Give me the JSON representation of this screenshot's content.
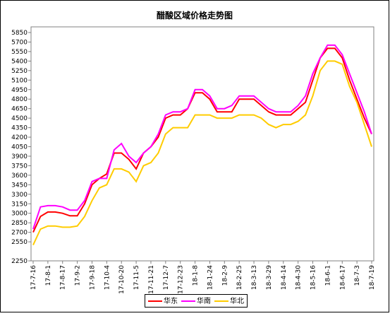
{
  "chart_data": {
    "type": "line",
    "title": "醋酸区域价格走势图",
    "categories": [
      "17-7-16",
      null,
      "17-8-1",
      null,
      "17-8-17",
      null,
      "17-9-2",
      null,
      "17-9-18",
      null,
      "17-10-4",
      null,
      "17-10-20",
      null,
      "17-11-5",
      null,
      "17-11-21",
      null,
      "17-12-7",
      null,
      "17-12-23",
      null,
      "18-1-8",
      null,
      "18-1-24",
      null,
      "18-2-9",
      null,
      "18-2-25",
      null,
      "18-3-13",
      null,
      "18-3-29",
      null,
      "18-4-14",
      null,
      "18-4-30",
      null,
      "18-5-16",
      null,
      "18-6-1",
      null,
      "18-6-17",
      null,
      "18-7-3",
      null,
      "18-7-19"
    ],
    "series": [
      {
        "name": "华东",
        "color": "#ff0000",
        "values": [
          2700,
          2950,
          3020,
          3020,
          3000,
          2960,
          2960,
          3150,
          3450,
          3550,
          3620,
          3950,
          3950,
          3850,
          3700,
          3950,
          4050,
          4200,
          4500,
          4550,
          4550,
          4650,
          4900,
          4900,
          4800,
          4600,
          4600,
          4600,
          4800,
          4800,
          4800,
          4700,
          4600,
          4550,
          4550,
          4550,
          4650,
          4750,
          5100,
          5450,
          5600,
          5600,
          5450,
          5100,
          4800,
          4500,
          4250
        ]
      },
      {
        "name": "华南",
        "color": "#ff00ff",
        "values": [
          2750,
          3100,
          3120,
          3120,
          3100,
          3050,
          3050,
          3200,
          3500,
          3550,
          3550,
          4000,
          4100,
          3900,
          3800,
          3950,
          4050,
          4250,
          4550,
          4600,
          4600,
          4650,
          4950,
          4950,
          4850,
          4650,
          4650,
          4700,
          4850,
          4850,
          4850,
          4750,
          4650,
          4600,
          4600,
          4600,
          4700,
          4850,
          5200,
          5450,
          5650,
          5650,
          5500,
          5200,
          4900,
          4600,
          4250
        ]
      },
      {
        "name": "华北",
        "color": "#ffcc00",
        "values": [
          2500,
          2750,
          2800,
          2800,
          2780,
          2780,
          2800,
          2950,
          3200,
          3400,
          3450,
          3700,
          3700,
          3650,
          3500,
          3750,
          3800,
          3950,
          4250,
          4350,
          4350,
          4350,
          4550,
          4550,
          4550,
          4500,
          4500,
          4500,
          4550,
          4550,
          4550,
          4500,
          4400,
          4350,
          4400,
          4400,
          4450,
          4550,
          4850,
          5250,
          5400,
          5400,
          5350,
          5000,
          4750,
          4400,
          4050
        ]
      }
    ],
    "ylim": [
      2250,
      5850
    ],
    "yticks": [
      2250,
      2550,
      2700,
      2850,
      3000,
      3150,
      3300,
      3450,
      3600,
      3750,
      3900,
      4050,
      4200,
      4350,
      4500,
      4650,
      4800,
      4950,
      5100,
      5250,
      5400,
      5550,
      5700,
      5850
    ]
  }
}
